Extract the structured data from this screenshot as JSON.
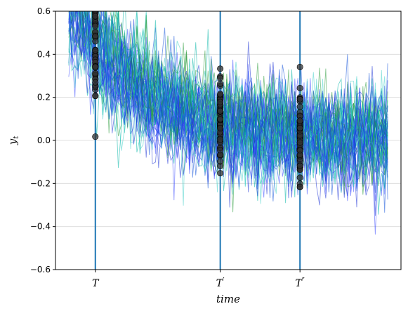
{
  "chart_data": {
    "type": "line",
    "title": "",
    "xlabel": "time",
    "ylabel": "y_t",
    "ylabel_main": "y",
    "ylabel_sub": "t",
    "ylim": [
      -0.6,
      0.6
    ],
    "yticks": [
      -0.6,
      -0.4,
      -0.2,
      0.0,
      0.2,
      0.4,
      0.6
    ],
    "ytick_labels": [
      "−0.6",
      "−0.4",
      "−0.2",
      "0.0",
      "0.2",
      "0.4",
      "0.6"
    ],
    "grid": "horizontal",
    "x_range": [
      -15,
      115
    ],
    "n_steps": 104,
    "n_paths": 60,
    "decay_initial": 0.8,
    "decay_rate": 0.04,
    "noise_sd": 0.11,
    "series_colors": [
      "#1a2fd6",
      "#00b5a5",
      "#2a9a3a",
      "#3848ff",
      "#41d0c8",
      "#0d4fd8"
    ],
    "vertical_lines": [
      {
        "label": "T",
        "main": "T",
        "prime": "",
        "x": 0
      },
      {
        "label": "T′",
        "main": "T",
        "prime": "′",
        "x": 47
      },
      {
        "label": "T″",
        "main": "T",
        "prime": "″",
        "x": 77
      }
    ],
    "vline_color": "#1f77b4",
    "marker_color": "#333333"
  }
}
